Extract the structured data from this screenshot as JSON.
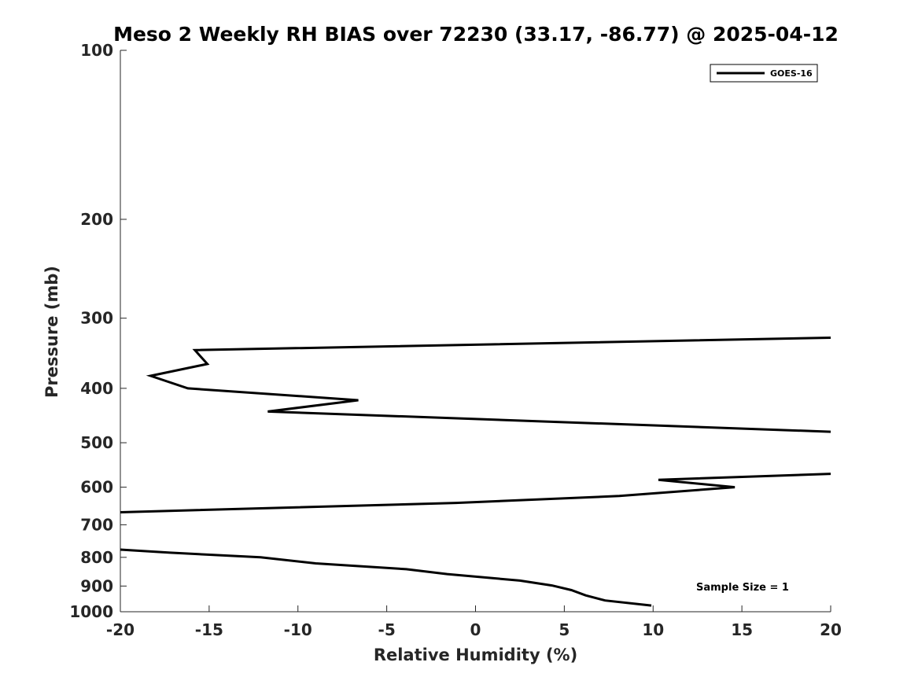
{
  "chart_data": {
    "type": "line",
    "title": "Meso 2 Weekly RH BIAS over 72230 (33.17, -86.77) @ 2025-04-12",
    "xlabel": "Relative Humidity (%)",
    "ylabel": "Pressure (mb)",
    "xlim": [
      -20,
      20
    ],
    "ylim": [
      1000,
      100
    ],
    "y_scale": "log",
    "y_reversed": true,
    "x_ticks": [
      -20,
      -15,
      -10,
      -5,
      0,
      5,
      10,
      15,
      20
    ],
    "y_ticks": [
      100,
      200,
      300,
      400,
      500,
      600,
      700,
      800,
      900,
      1000
    ],
    "grid": false,
    "legend": {
      "position": "top-right",
      "entries": [
        "GOES-16"
      ]
    },
    "annotation": "Sample Size = 1",
    "series": [
      {
        "name": "GOES-16",
        "color": "#000000",
        "points": [
          [
            9.9,
            975
          ],
          [
            7.3,
            955
          ],
          [
            6.2,
            935
          ],
          [
            5.4,
            915
          ],
          [
            4.3,
            898
          ],
          [
            2.5,
            880
          ],
          [
            -1.6,
            857
          ],
          [
            -3.9,
            840
          ],
          [
            -9.0,
            820
          ],
          [
            -12.1,
            800
          ],
          [
            -17.2,
            785
          ],
          [
            -20.0,
            775
          ]
        ]
      },
      {
        "name": "GOES-16",
        "color": "#000000",
        "points": [
          [
            -20.0,
            665
          ],
          [
            -1.1,
            640
          ],
          [
            8.1,
            622
          ],
          [
            14.6,
            600
          ],
          [
            10.3,
            582
          ],
          [
            20.0,
            568
          ]
        ]
      },
      {
        "name": "GOES-16",
        "color": "#000000",
        "points": [
          [
            20.0,
            478
          ],
          [
            -11.7,
            440
          ],
          [
            -6.6,
            420
          ],
          [
            -16.2,
            400
          ],
          [
            -18.3,
            380
          ],
          [
            -15.1,
            362
          ],
          [
            -15.8,
            342
          ],
          [
            20.0,
            325
          ]
        ]
      }
    ]
  }
}
